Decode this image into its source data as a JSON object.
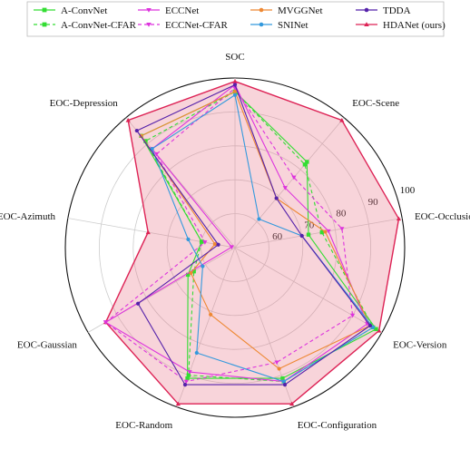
{
  "chart_data": {
    "type": "radar",
    "title": "",
    "axes": [
      "SOC",
      "EOC-Scene",
      "EOC-Occlusion",
      "EOC-Version",
      "EOC-Configuration",
      "EOC-Random",
      "EOC-Gaussian",
      "EOC-Azimuth",
      "EOC-Depression"
    ],
    "rlim": [
      50,
      100
    ],
    "rticks": [
      60,
      70,
      80,
      90,
      100
    ],
    "grid": true,
    "legend_position": "top",
    "series": [
      {
        "name": "A-ConvNet",
        "color": "#33dd33",
        "style": "solid",
        "marker": "square",
        "values": [
          96,
          83,
          72,
          98,
          91,
          91,
          66,
          60,
          93
        ]
      },
      {
        "name": "A-ConvNet-CFAR",
        "color": "#33dd33",
        "style": "dashed",
        "marker": "square",
        "values": [
          96,
          82,
          76,
          97,
          92,
          90,
          64,
          60,
          91
        ]
      },
      {
        "name": "ECCNet",
        "color": "#dd33dd",
        "style": "solid",
        "marker": "triangle-down",
        "values": [
          98,
          73,
          78,
          95,
          92,
          89,
          94,
          51,
          88
        ]
      },
      {
        "name": "ECCNet-CFAR",
        "color": "#dd33dd",
        "style": "dashed",
        "marker": "triangle-down",
        "values": [
          97,
          77,
          82,
          90,
          86,
          92,
          94,
          59,
          86
        ]
      },
      {
        "name": "MVGGNet",
        "color": "#ee8833",
        "style": "solid",
        "marker": "circle",
        "values": [
          96,
          69,
          77,
          96,
          88,
          71,
          65,
          56,
          93
        ]
      },
      {
        "name": "SNINet",
        "color": "#3399dd",
        "style": "solid",
        "marker": "circle",
        "values": [
          95,
          61,
          70,
          97,
          92,
          83,
          61,
          64,
          88
        ]
      },
      {
        "name": "TDDA",
        "color": "#5522aa",
        "style": "solid",
        "marker": "circle",
        "values": [
          98,
          69,
          70,
          96,
          93,
          93,
          83,
          55,
          95
        ]
      },
      {
        "name": "HDANet (ours)",
        "color": "#dd2255",
        "style": "solid",
        "marker": "triangle-up",
        "values": [
          99,
          99,
          99,
          99,
          99,
          99,
          94,
          76,
          99
        ]
      }
    ]
  }
}
